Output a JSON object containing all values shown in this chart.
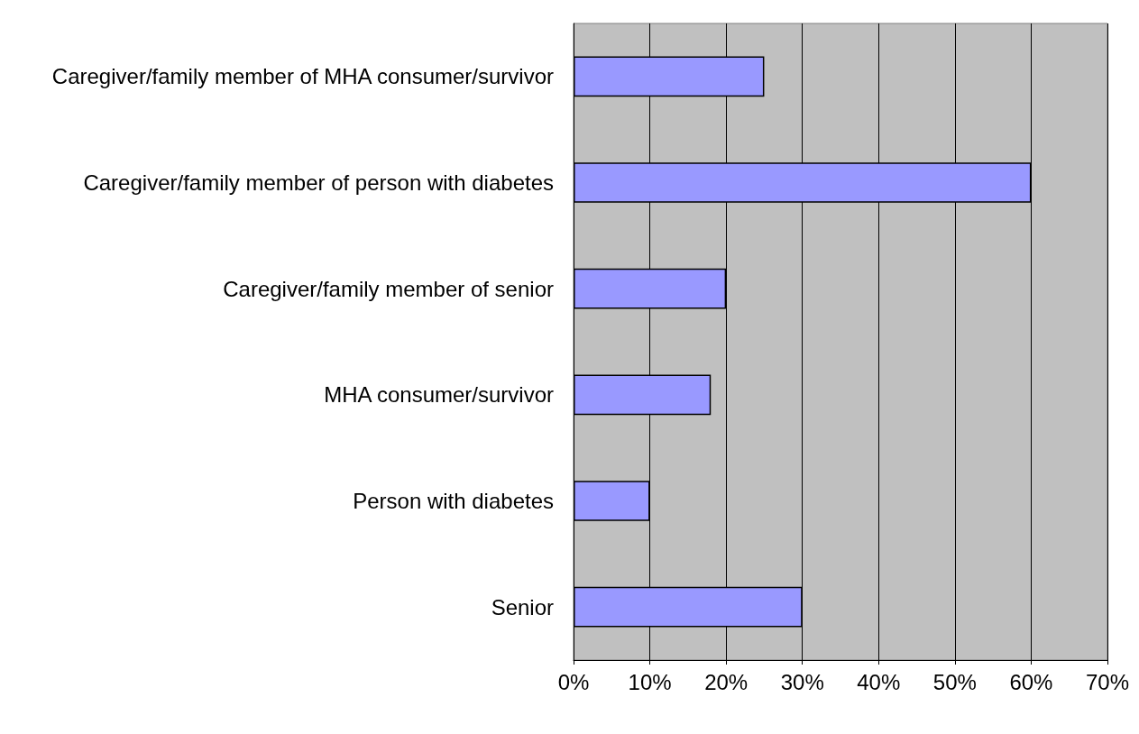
{
  "chart_data": {
    "type": "bar",
    "orientation": "horizontal",
    "categories": [
      "Caregiver/family member of MHA consumer/survivor",
      "Caregiver/family member of person with diabetes",
      "Caregiver/family member of senior",
      "MHA consumer/survivor",
      "Person with diabetes",
      "Senior"
    ],
    "values": [
      25,
      60,
      20,
      18,
      10,
      30
    ],
    "color": "#9999ff",
    "xlim": [
      0,
      70
    ],
    "xticks": [
      {
        "value": 0,
        "label": "0%"
      },
      {
        "value": 10,
        "label": "10%"
      },
      {
        "value": 20,
        "label": "20%"
      },
      {
        "value": 30,
        "label": "30%"
      },
      {
        "value": 40,
        "label": "40%"
      },
      {
        "value": 50,
        "label": "50%"
      },
      {
        "value": 60,
        "label": "60%"
      },
      {
        "value": 70,
        "label": "70%"
      }
    ],
    "grid": "x"
  }
}
